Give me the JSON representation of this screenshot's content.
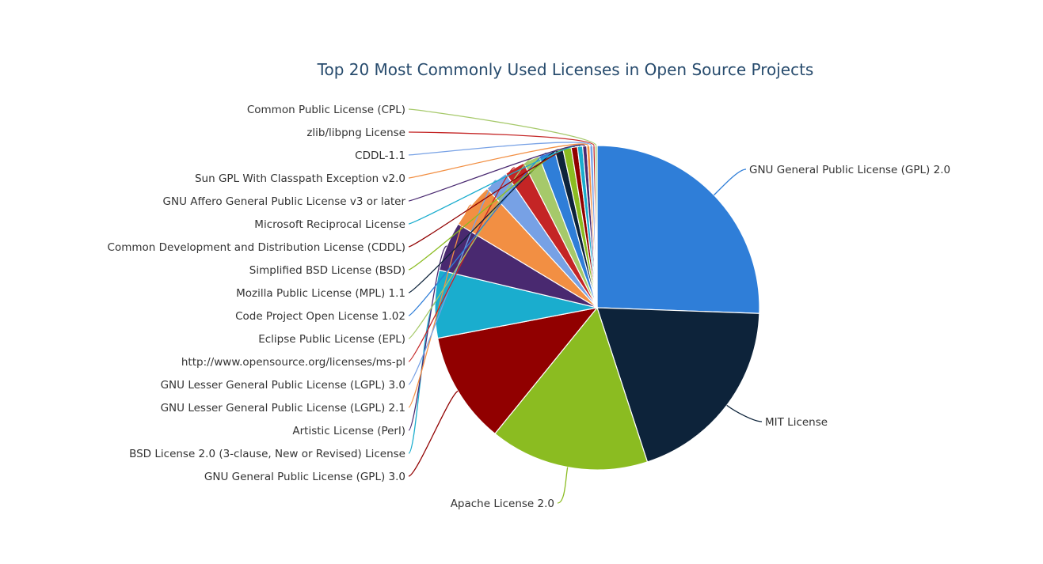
{
  "chart_data": {
    "type": "pie",
    "title": "Top 20 Most Commonly Used Licenses in Open Source Projects",
    "slices": [
      {
        "label": "GNU General Public License (GPL) 2.0",
        "value": 25.0,
        "color": "#2f7ed8"
      },
      {
        "label": "MIT License",
        "value": 19.0,
        "color": "#0d233a"
      },
      {
        "label": "Apache License 2.0",
        "value": 15.5,
        "color": "#8bbc21"
      },
      {
        "label": "GNU General Public License (GPL) 3.0",
        "value": 10.9,
        "color": "#910000"
      },
      {
        "label": "BSD License 2.0 (3-clause, New or Revised) License",
        "value": 6.6,
        "color": "#1aadce"
      },
      {
        "label": "Artistic License (Perl)",
        "value": 4.8,
        "color": "#492970"
      },
      {
        "label": "GNU Lesser General Public License (LGPL) 2.1",
        "value": 4.4,
        "color": "#f28f43"
      },
      {
        "label": "GNU Lesser General Public License (LGPL) 3.0",
        "value": 2.3,
        "color": "#77a1e5"
      },
      {
        "label": "http://www.opensource.org/licenses/ms-pl",
        "value": 2.0,
        "color": "#c42525"
      },
      {
        "label": "Eclipse Public License (EPL)",
        "value": 1.6,
        "color": "#a6c96a"
      },
      {
        "label": "Code Project Open License 1.02",
        "value": 1.6,
        "color": "#2f7ed8"
      },
      {
        "label": "Mozilla Public License (MPL) 1.1",
        "value": 0.8,
        "color": "#0d233a"
      },
      {
        "label": "Simplified BSD License (BSD)",
        "value": 0.8,
        "color": "#8bbc21"
      },
      {
        "label": "Common Development and Distribution License (CDDL)",
        "value": 0.6,
        "color": "#910000"
      },
      {
        "label": "Microsoft Reciprocal License",
        "value": 0.5,
        "color": "#1aadce"
      },
      {
        "label": "GNU Affero General Public License v3 or later",
        "value": 0.4,
        "color": "#492970"
      },
      {
        "label": "Sun GPL With Classpath Exception v2.0",
        "value": 0.3,
        "color": "#f28f43"
      },
      {
        "label": "CDDL-1.1",
        "value": 0.3,
        "color": "#77a1e5"
      },
      {
        "label": "zlib/libpng License",
        "value": 0.2,
        "color": "#c42525"
      },
      {
        "label": "Common Public License (CPL)",
        "value": 0.2,
        "color": "#a6c96a"
      }
    ]
  }
}
